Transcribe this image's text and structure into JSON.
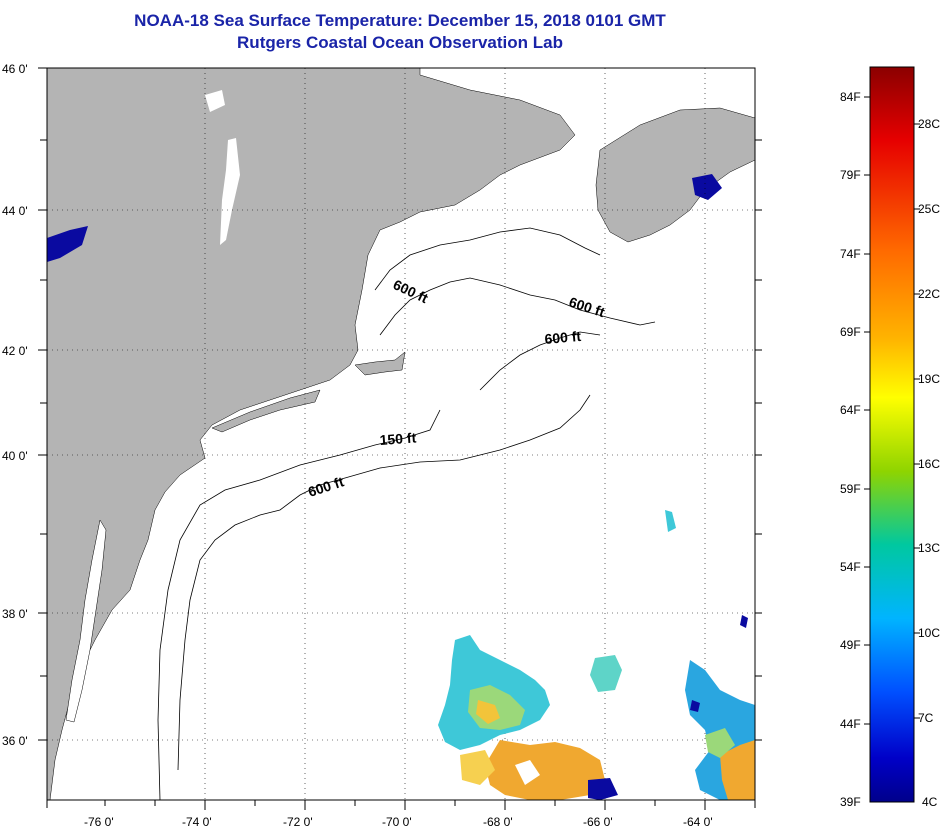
{
  "title": {
    "line1": "NOAA-18 Sea Surface Temperature:  December 15, 2018 0101 GMT",
    "line2": "Rutgers Coastal Ocean Observation Lab"
  },
  "map": {
    "lat_labels": [
      "46 0'",
      "44 0'",
      "42 0'",
      "40 0'",
      "38 0'",
      "36 0'"
    ],
    "lon_labels": [
      "-76 0'",
      "-74 0'",
      "-72 0'",
      "-70 0'",
      "-68 0'",
      "-66 0'",
      "-64 0'"
    ],
    "land_color": "#b4b4b4",
    "ocean_color": "#ffffff",
    "contours": [
      {
        "label": "600 ft"
      },
      {
        "label": "600 ft"
      },
      {
        "label": "600 ft"
      },
      {
        "label": "150 ft"
      },
      {
        "label": "600 ft"
      }
    ]
  },
  "legend": {
    "fahrenheit": [
      "84F",
      "79F",
      "74F",
      "69F",
      "64F",
      "59F",
      "54F",
      "49F",
      "44F",
      "39F"
    ],
    "celsius": [
      "28C",
      "25C",
      "22C",
      "19C",
      "16C",
      "13C",
      "10C",
      "7C",
      "4C"
    ],
    "colors": [
      "#8b0000",
      "#e60000",
      "#ff6a00",
      "#ffb400",
      "#ffff00",
      "#8fd400",
      "#00c8a0",
      "#00b4ff",
      "#0050ff",
      "#0000c8",
      "#00008b"
    ]
  }
}
